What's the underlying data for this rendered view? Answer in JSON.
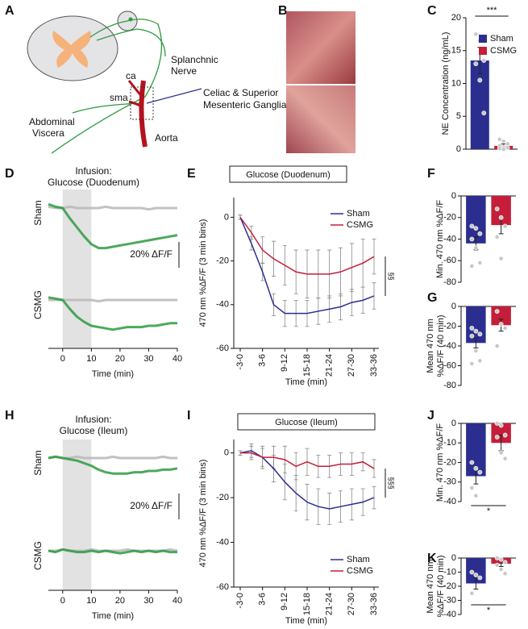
{
  "diagram": {
    "panel": "A",
    "labels": [
      "Splanchnic",
      "Nerve",
      "ca",
      "sma",
      "Celiac & Superior",
      "Mesenteric Ganglia",
      "Abdominal",
      "Viscera",
      "Aorta"
    ]
  },
  "photos": {
    "panel": "B"
  },
  "chart_data": [
    {
      "type": "bar",
      "panel": "C",
      "ylabel": [
        "NE Concentration (ng/mL)"
      ],
      "ylim": [
        0,
        20
      ],
      "yticks": [
        0,
        5,
        10,
        15,
        20
      ],
      "legend": "upper right",
      "annotation": "***",
      "series": [
        {
          "name": "Sham",
          "color": "#2b2e8f",
          "values": [
            13.5
          ],
          "errors": [
            2
          ],
          "points": [
            17.5,
            16.5,
            13.5,
            13,
            10.5,
            5.5
          ]
        },
        {
          "name": "CSMG",
          "color": "#c41e3a",
          "values": [
            0.5
          ],
          "errors": [
            0.3
          ],
          "points": [
            1.5,
            1.2,
            0.8,
            0.5,
            0.3,
            0.2,
            0.1,
            0
          ]
        }
      ]
    },
    {
      "type": "trace",
      "panel": "D",
      "title": [
        "Infusion:",
        "Glucose (Duodenum)"
      ],
      "xlabel": "Time (min)",
      "xlim": [
        -5,
        40
      ],
      "xticks": [
        0,
        10,
        20,
        30,
        40
      ],
      "shade": [
        0,
        10
      ],
      "scalebar": {
        "value": 20,
        "label": "20% ΔF/F"
      },
      "x": [
        -5,
        -2.5,
        0,
        2.5,
        5,
        7.5,
        10,
        12.5,
        15,
        17.5,
        20,
        22.5,
        25,
        27.5,
        30,
        32.5,
        35,
        37.5,
        40
      ],
      "rows": [
        {
          "label": "Sham",
          "series": [
            {
              "color": "#b7b7bc",
              "values": [
                1,
                0,
                0,
                1,
                0,
                0,
                0,
                0,
                1,
                0,
                0,
                0,
                0,
                0,
                -1,
                0,
                0,
                0,
                0
              ]
            },
            {
              "color": "#2e9a3f",
              "values": [
                3,
                1,
                0,
                -8,
                -15,
                -22,
                -28,
                -31,
                -31,
                -30,
                -29,
                -28,
                -27,
                -26,
                -25,
                -24,
                -23,
                -22,
                -21
              ]
            }
          ]
        },
        {
          "label": "CSMG",
          "series": [
            {
              "color": "#b7b7bc",
              "values": [
                0,
                0,
                0,
                0,
                0,
                0,
                0,
                -1,
                0,
                0,
                0,
                0,
                0,
                0,
                0,
                0,
                0,
                0,
                0
              ]
            },
            {
              "color": "#2e9a3f",
              "values": [
                2,
                1,
                0,
                -7,
                -13,
                -17,
                -20,
                -21,
                -22,
                -23,
                -22,
                -21,
                -21,
                -21,
                -20,
                -20,
                -19,
                -18,
                -18
              ]
            }
          ]
        }
      ]
    },
    {
      "type": "line",
      "panel": "E",
      "title": "Glucose (Duodenum)",
      "xlabel": "Time (min)",
      "ylabel": [
        "470 nm %ΔF/F (3 min bins)"
      ],
      "ylim": [
        -60,
        9
      ],
      "yticks": [
        0,
        -20,
        -40,
        -60
      ],
      "legend": "upper right",
      "annotation": "§§",
      "categories": [
        "-3-0",
        null,
        "3-6",
        null,
        "9-12",
        null,
        "15-18",
        null,
        "21-24",
        null,
        "27-30",
        null,
        "33-36"
      ],
      "series": [
        {
          "name": "Sham",
          "color": "#2b2e8f",
          "values": [
            0,
            -12,
            -25,
            -40,
            -44,
            -44,
            -44,
            -43,
            -42,
            -41,
            -39,
            -38,
            -36
          ],
          "errors": [
            1,
            3,
            4,
            5,
            6,
            6,
            6,
            6,
            6,
            6,
            6,
            6,
            6
          ]
        },
        {
          "name": "CSMG",
          "color": "#c41e3a",
          "values": [
            0,
            -7,
            -15,
            -19,
            -22,
            -25,
            -26,
            -26,
            -26,
            -25,
            -23,
            -21,
            -18
          ],
          "errors": [
            1,
            3,
            6,
            8,
            9,
            10,
            11,
            11,
            11,
            11,
            11,
            11,
            8
          ]
        }
      ]
    },
    {
      "type": "bar",
      "panel": "F",
      "ylabel": [
        "Min. 470 nm %ΔF/F"
      ],
      "ylim": [
        -80,
        0
      ],
      "yticks": [
        0,
        -20,
        -40,
        -60,
        -80
      ],
      "series": [
        {
          "color": "#2b2e8f",
          "values": [
            -44
          ],
          "errors": [
            6
          ],
          "points": [
            -28,
            -30,
            -35,
            -40,
            -48,
            -62,
            -65
          ]
        },
        {
          "color": "#c41e3a",
          "values": [
            -27
          ],
          "errors": [
            8
          ],
          "points": [
            -12,
            -20,
            -28,
            -38,
            -58
          ]
        }
      ]
    },
    {
      "type": "bar",
      "panel": "G",
      "ylabel": [
        "Mean 470 nm",
        "%ΔF/F (40 min)"
      ],
      "ylim": [
        -80,
        0
      ],
      "yticks": [
        0,
        -20,
        -40,
        -60,
        -80
      ],
      "series": [
        {
          "color": "#2b2e8f",
          "values": [
            -37
          ],
          "errors": [
            5
          ],
          "points": [
            -22,
            -25,
            -28,
            -30,
            -45,
            -55,
            -58
          ]
        },
        {
          "color": "#c41e3a",
          "values": [
            -19
          ],
          "errors": [
            6
          ],
          "points": [
            -5,
            -18,
            -22,
            -40
          ]
        }
      ]
    },
    {
      "type": "trace",
      "panel": "H",
      "title": [
        "Infusion:",
        "Glucose (Ileum)"
      ],
      "xlabel": "Time (min)",
      "xlim": [
        -5,
        40
      ],
      "xticks": [
        0,
        10,
        20,
        30,
        40
      ],
      "shade": [
        0,
        10
      ],
      "scalebar": {
        "value": 20,
        "label": "20% ΔF/F"
      },
      "x": [
        -5,
        -2.5,
        0,
        2.5,
        5,
        7.5,
        10,
        12.5,
        15,
        17.5,
        20,
        22.5,
        25,
        27.5,
        30,
        32.5,
        35,
        37.5,
        40
      ],
      "rows": [
        {
          "label": "Sham",
          "series": [
            {
              "color": "#b7b7bc",
              "values": [
                0,
                1,
                0,
                0,
                1,
                0,
                0,
                0,
                0,
                1,
                0,
                0,
                0,
                0,
                0,
                0,
                1,
                0,
                0
              ]
            },
            {
              "color": "#2e9a3f",
              "values": [
                0,
                1,
                0,
                -1,
                -2,
                -4,
                -6,
                -9,
                -11,
                -12,
                -12,
                -12,
                -11,
                -11,
                -10,
                -10,
                -9,
                -9,
                -8
              ]
            }
          ]
        },
        {
          "label": "CSMG",
          "series": [
            {
              "color": "#b7b7bc",
              "values": [
                0,
                0,
                1,
                0,
                0,
                0,
                1,
                0,
                0,
                0,
                0,
                1,
                0,
                0,
                0,
                0,
                0,
                1,
                0
              ]
            },
            {
              "color": "#2e9a3f",
              "values": [
                0,
                -1,
                1,
                0,
                -1,
                -1,
                0,
                -1,
                0,
                -1,
                -2,
                -1,
                0,
                -1,
                0,
                -1,
                0,
                -1,
                -1
              ]
            }
          ]
        }
      ]
    },
    {
      "type": "line",
      "panel": "I",
      "title": "Glucose (Ileum)",
      "xlabel": "Time (min)",
      "ylabel": [
        "470 nm %ΔF/F (3 min bins)"
      ],
      "ylim": [
        -60,
        6
      ],
      "yticks": [
        0,
        -20,
        -40,
        -60
      ],
      "legend": "lower right",
      "annotation": "§§§",
      "categories": [
        "-3-0",
        null,
        "3-6",
        null,
        "9-12",
        null,
        "15-18",
        null,
        "21-24",
        null,
        "27-30",
        null,
        "33-36"
      ],
      "series": [
        {
          "name": "Sham",
          "color": "#2b2e8f",
          "values": [
            0,
            1,
            -2,
            -7,
            -13,
            -18,
            -22,
            -24,
            -25,
            -24,
            -23,
            -22,
            -20
          ],
          "errors": [
            1,
            3,
            4,
            6,
            8,
            8,
            8,
            8,
            7,
            7,
            7,
            6,
            5
          ]
        },
        {
          "name": "CSMG",
          "color": "#c41e3a",
          "values": [
            0,
            0,
            -2,
            -2,
            -3,
            -6,
            -4,
            -6,
            -6,
            -5,
            -5,
            -4,
            -7
          ],
          "errors": [
            1,
            3,
            5,
            5,
            6,
            6,
            6,
            5,
            5,
            5,
            5,
            4,
            4
          ]
        }
      ]
    },
    {
      "type": "bar",
      "panel": "J",
      "ylabel": [
        "Min. 470 nm %ΔF/F"
      ],
      "ylim": [
        -40,
        0
      ],
      "yticks": [
        0,
        -10,
        -20,
        -30,
        -40
      ],
      "annotation": "*",
      "series": [
        {
          "color": "#2b2e8f",
          "values": [
            -27
          ],
          "errors": [
            4
          ],
          "points": [
            -20,
            -23,
            -25,
            -33,
            -37
          ]
        },
        {
          "color": "#c41e3a",
          "values": [
            -10
          ],
          "errors": [
            4
          ],
          "points": [
            0,
            -1,
            -6,
            -7,
            -15,
            -18
          ]
        }
      ]
    },
    {
      "type": "bar",
      "panel": "K",
      "ylabel": [
        "Mean 470 nm",
        "%ΔF/F (40 min)"
      ],
      "ylim": [
        -40,
        0
      ],
      "yticks": [
        0,
        -10,
        -20,
        -30,
        -40
      ],
      "annotation": "*",
      "series": [
        {
          "color": "#2b2e8f",
          "values": [
            -18
          ],
          "errors": [
            4
          ],
          "points": [
            -10,
            -12,
            -14,
            -25
          ]
        },
        {
          "color": "#c41e3a",
          "values": [
            -4
          ],
          "errors": [
            2
          ],
          "points": [
            0,
            -1,
            -3,
            -5,
            -8,
            -11
          ]
        }
      ]
    }
  ]
}
